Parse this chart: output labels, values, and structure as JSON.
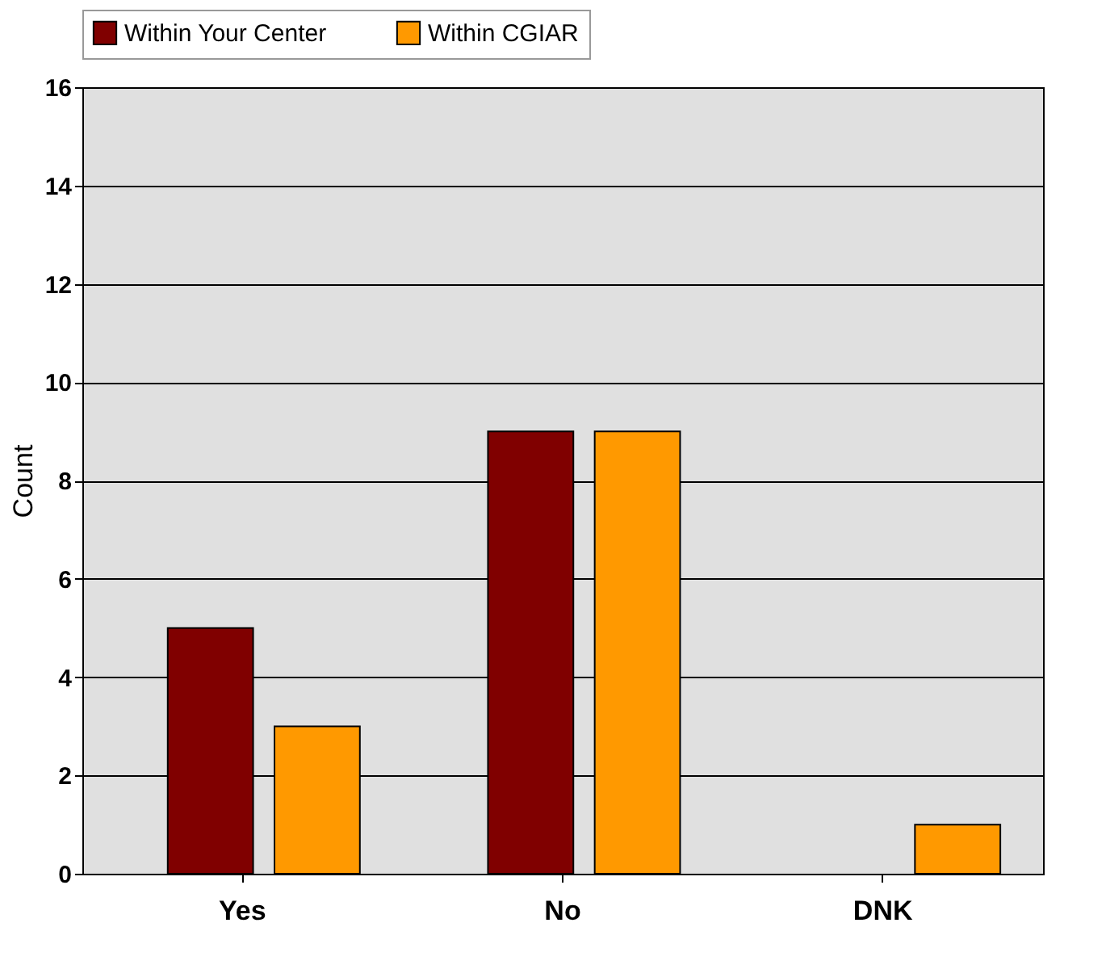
{
  "chart_data": {
    "type": "bar",
    "ylabel": "Count",
    "categories": [
      "Yes",
      "No",
      "DNK"
    ],
    "series": [
      {
        "name": "Within Your Center",
        "color": "#800000",
        "values": [
          5,
          9,
          null
        ]
      },
      {
        "name": "Within CGIAR",
        "color": "#ff9900",
        "values": [
          3,
          9,
          1
        ]
      }
    ],
    "ylim": [
      0,
      16
    ],
    "yticks": [
      0,
      2,
      4,
      6,
      8,
      10,
      12,
      14,
      16
    ],
    "grid": "y",
    "legend": "top"
  }
}
